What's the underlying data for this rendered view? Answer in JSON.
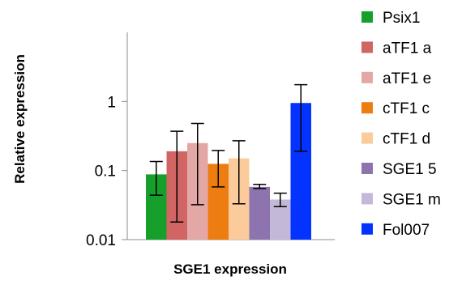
{
  "chart_data": {
    "type": "bar",
    "title": "",
    "xlabel": "SGE1 expression",
    "ylabel": "Relative expression",
    "yscale": "log",
    "ylim": [
      0.01,
      10
    ],
    "yticks": [
      {
        "value": 0.01,
        "label": "0.01"
      },
      {
        "value": 0.1,
        "label": "0.1"
      },
      {
        "value": 1,
        "label": "1"
      }
    ],
    "grid": false,
    "legend_position": "right",
    "series": [
      {
        "name": "Psix1",
        "value": 0.088,
        "err_low": 0.044,
        "err_high": 0.135,
        "color": "#169F2B"
      },
      {
        "name": "aTF1 a",
        "value": 0.19,
        "err_low": 0.018,
        "err_high": 0.37,
        "color": "#D16563"
      },
      {
        "name": "aTF1 e",
        "value": 0.25,
        "err_low": 0.032,
        "err_high": 0.48,
        "color": "#E3A8A6"
      },
      {
        "name": "cTF1 c",
        "value": 0.125,
        "err_low": 0.058,
        "err_high": 0.195,
        "color": "#EE7D11"
      },
      {
        "name": "cTF1 d",
        "value": 0.15,
        "err_low": 0.033,
        "err_high": 0.27,
        "color": "#FBCB9B"
      },
      {
        "name": "SGE1 5",
        "value": 0.058,
        "err_low": 0.055,
        "err_high": 0.063,
        "color": "#8D74AF"
      },
      {
        "name": "SGE1 m",
        "value": 0.038,
        "err_low": 0.03,
        "err_high": 0.047,
        "color": "#C4B8D8"
      },
      {
        "name": "Fol007",
        "value": 0.95,
        "err_low": 0.19,
        "err_high": 1.75,
        "color": "#0433FF"
      }
    ]
  }
}
